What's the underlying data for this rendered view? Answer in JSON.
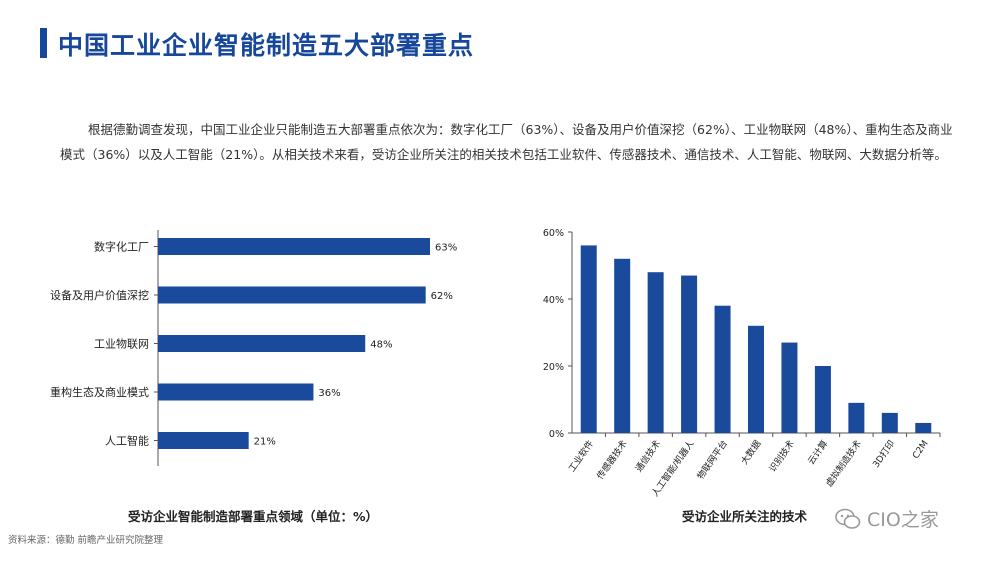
{
  "page": {
    "title": "中国工业企业智能制造五大部署重点",
    "paragraph": "根据德勤调查发现，中国工业企业只能制造五大部署重点依次为：数字化工厂（63%）、设备及用户价值深挖（62%）、工业物联网（48%）、重构生态及商业模式（36%）以及人工智能（21%）。从相关技术来看，受访企业所关注的相关技术包括工业软件、传感器技术、通信技术、人工智能、物联网、大数据分析等。",
    "source": "资料来源：德勤 前瞻产业研究院整理",
    "watermark": "CIO之家",
    "watermark_icon": "wechat-icon",
    "colors": {
      "accent": "#16479b",
      "bar": "#1a4a9c"
    }
  },
  "chart_data": [
    {
      "type": "bar",
      "orientation": "horizontal",
      "title": "受访企业智能制造部署重点领域（单位：%）",
      "categories": [
        "数字化工厂",
        "设备及用户价值深挖",
        "工业物联网",
        "重构生态及商业模式",
        "人工智能"
      ],
      "values": [
        63,
        62,
        48,
        36,
        21
      ],
      "value_labels": [
        "63%",
        "62%",
        "48%",
        "36%",
        "21%"
      ],
      "xlim": [
        0,
        100
      ],
      "grid": false
    },
    {
      "type": "bar",
      "title": "受访企业所关注的技术",
      "categories": [
        "工业软件",
        "传感器技术",
        "通信技术",
        "人工智能/机器人",
        "物联网平台",
        "大数据",
        "识别技术",
        "云计算",
        "虚拟制造技术",
        "3D打印",
        "C2M"
      ],
      "values": [
        56,
        52,
        48,
        47,
        38,
        32,
        27,
        20,
        9,
        6,
        3
      ],
      "ylim": [
        0,
        60
      ],
      "yticks": [
        "0%",
        "20%",
        "40%",
        "60%"
      ],
      "grid": false
    }
  ]
}
